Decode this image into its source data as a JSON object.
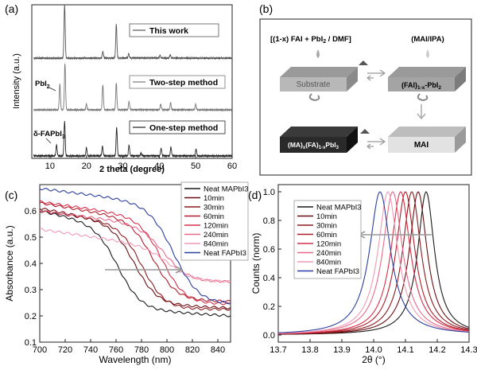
{
  "panels": {
    "a": {
      "label": "(a)"
    },
    "b": {
      "label": "(b)"
    },
    "c": {
      "label": "(c)"
    },
    "d": {
      "label": "(d)"
    }
  },
  "scheme": {
    "top_left_reagent": "[(1-x) FAI + PbI",
    "top_left_reagent_sub": "2",
    "top_left_reagent_tail": " / DMF]",
    "top_right_reagent": "(MAI/IPA)",
    "substrate_label": "Substrate",
    "intermediate_label": "(FAI)",
    "intermediate_sub": "1-x",
    "intermediate_tail": "-PbI",
    "intermediate_sub2": "2",
    "mai_label": "MAI",
    "product_label": "(MA)",
    "product_sub1": "x",
    "product_mid": "(FA)",
    "product_sub2": "1-x",
    "product_tail": "PbI",
    "product_sub3": "3",
    "colors": {
      "plate": "#c8c8c8",
      "plate_dark": "#2a2a2a",
      "frame": "#444444"
    }
  },
  "chart_data": [
    {
      "panel": "a",
      "type": "line",
      "xlabel": "2 theta (degree)",
      "ylabel": "Intensity (a.u.)",
      "xlim": [
        5,
        60
      ],
      "xticks": [
        10,
        20,
        30,
        40,
        50,
        60
      ],
      "legend_entries": [
        "This work",
        "Two-step method",
        "One-step method"
      ],
      "annotations": [
        {
          "text": "PbI",
          "sub": "2",
          "x": 12.7
        },
        {
          "text": "δ-FAPbI",
          "sub": "3",
          "x": 11.8
        }
      ],
      "series": [
        {
          "name": "This work",
          "peaks": [
            [
              14.0,
              1.0
            ],
            [
              24.5,
              0.12
            ],
            [
              28.2,
              0.62
            ],
            [
              31.6,
              0.08
            ],
            [
              40.2,
              0.05
            ],
            [
              43.0,
              0.06
            ]
          ]
        },
        {
          "name": "Two-step method",
          "peaks": [
            [
              12.7,
              0.55
            ],
            [
              14.1,
              1.0
            ],
            [
              20.0,
              0.12
            ],
            [
              24.5,
              0.55
            ],
            [
              28.2,
              0.58
            ],
            [
              31.7,
              0.18
            ],
            [
              40.4,
              0.12
            ],
            [
              43.1,
              0.15
            ],
            [
              50.0,
              0.12
            ]
          ]
        },
        {
          "name": "One-step method",
          "peaks": [
            [
              11.8,
              0.25
            ],
            [
              14.0,
              0.8
            ],
            [
              20.0,
              0.18
            ],
            [
              24.4,
              0.22
            ],
            [
              28.3,
              0.65
            ],
            [
              31.7,
              0.25
            ],
            [
              35.0,
              0.06
            ],
            [
              40.5,
              0.18
            ],
            [
              43.2,
              0.2
            ],
            [
              50.1,
              0.16
            ]
          ]
        }
      ],
      "colors": [
        "#555555",
        "#777777",
        "#222222"
      ]
    },
    {
      "panel": "c",
      "type": "line",
      "xlabel": "Wavelength (nm)",
      "ylabel": "Absorbance (a.u.)",
      "xlim": [
        700,
        850
      ],
      "ylim": [
        0.1,
        0.7
      ],
      "xticks": [
        700,
        720,
        740,
        760,
        780,
        800,
        820,
        840
      ],
      "yticks": [
        0.1,
        0.2,
        0.3,
        0.4,
        0.5,
        0.6
      ],
      "series": [
        {
          "name": "Neat MAPbI3",
          "color": "#1a1a1a",
          "start": 0.51,
          "edge": 762,
          "width": 9,
          "plateau": 0.215,
          "tail": -0.015
        },
        {
          "name": "10min",
          "color": "#6b0f12",
          "start": 0.53,
          "edge": 775,
          "width": 9,
          "plateau": 0.24,
          "tail": -0.01
        },
        {
          "name": "30min",
          "color": "#8c1a1f",
          "start": 0.54,
          "edge": 781,
          "width": 9,
          "plateau": 0.225,
          "tail": 0.0
        },
        {
          "name": "60min",
          "color": "#b01e2a",
          "start": 0.56,
          "edge": 790,
          "width": 9,
          "plateau": 0.26,
          "tail": -0.005
        },
        {
          "name": "120min",
          "color": "#d6304a",
          "start": 0.575,
          "edge": 797,
          "width": 9,
          "plateau": 0.245,
          "tail": 0.0
        },
        {
          "name": "240min",
          "color": "#e86a8a",
          "start": 0.55,
          "edge": 799,
          "width": 10,
          "plateau": 0.325,
          "tail": 0.005
        },
        {
          "name": "840min",
          "color": "#f09ab4",
          "start": 0.47,
          "edge": 803,
          "width": 10,
          "plateau": 0.33,
          "tail": 0.0
        },
        {
          "name": "Neat FAPbI3",
          "color": "#2b3f9e",
          "start": 0.635,
          "edge": 806,
          "width": 10,
          "plateau": 0.24,
          "tail": 0.005
        }
      ]
    },
    {
      "panel": "d",
      "type": "line",
      "xlabel": "2θ (°)",
      "ylabel": "Counts (norm)",
      "xlim": [
        13.7,
        14.3
      ],
      "ylim": [
        -0.05,
        1.05
      ],
      "xticks": [
        13.7,
        13.8,
        13.9,
        14.0,
        14.1,
        14.2,
        14.3
      ],
      "yticks": [
        0.0,
        0.2,
        0.4,
        0.6,
        0.8,
        1.0
      ],
      "series": [
        {
          "name": "Neat MAPbI3",
          "color": "#1a1a1a",
          "center": 14.165,
          "hwhm": 0.032
        },
        {
          "name": "10min",
          "color": "#6b0f12",
          "center": 14.14,
          "hwhm": 0.034
        },
        {
          "name": "30min",
          "color": "#8c1a1f",
          "center": 14.12,
          "hwhm": 0.035
        },
        {
          "name": "60min",
          "color": "#b01e2a",
          "center": 14.1,
          "hwhm": 0.036
        },
        {
          "name": "120min",
          "color": "#d6304a",
          "center": 14.085,
          "hwhm": 0.037
        },
        {
          "name": "240min",
          "color": "#e86a8a",
          "center": 14.06,
          "hwhm": 0.038
        },
        {
          "name": "840min",
          "color": "#f09ab4",
          "center": 14.045,
          "hwhm": 0.038
        },
        {
          "name": "Neat FAPbI3",
          "color": "#2b3f9e",
          "center": 14.02,
          "hwhm": 0.04
        }
      ]
    }
  ]
}
